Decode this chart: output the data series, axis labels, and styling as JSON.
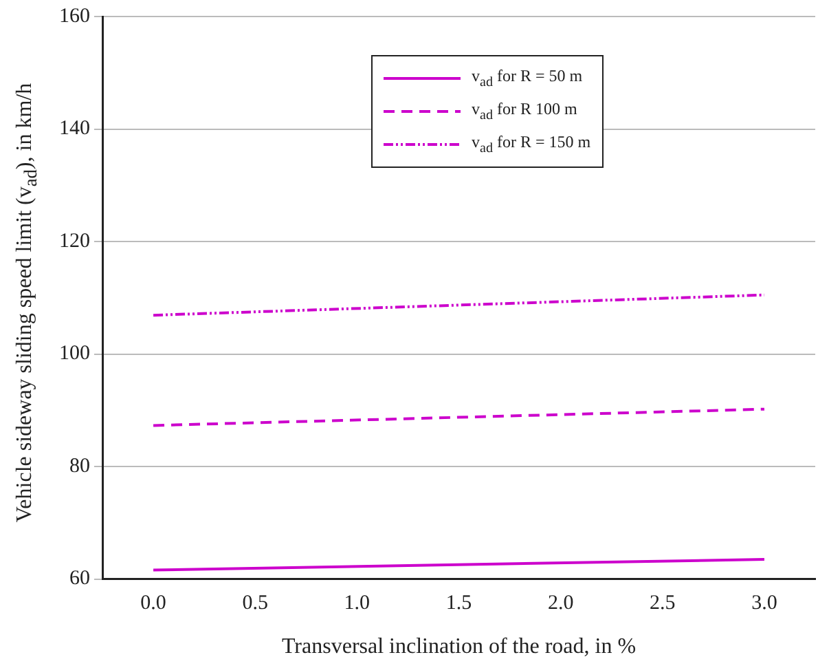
{
  "chart_data": {
    "type": "line",
    "xlabel": "Transversal inclination of the road, in %",
    "ylabel": "Vehicle sideway sliding speed limit (v$_{ad}$), in km/h",
    "xlim": [
      -0.25,
      3.25
    ],
    "xticks": [
      {
        "value": 0,
        "label": "0.0"
      },
      {
        "value": 0.5,
        "label": "0.5"
      },
      {
        "value": 1,
        "label": "1.0"
      },
      {
        "value": 1.5,
        "label": "1.5"
      },
      {
        "value": 2,
        "label": "2.0"
      },
      {
        "value": 2.5,
        "label": "2.5"
      },
      {
        "value": 3,
        "label": "3.0"
      }
    ],
    "ylim": [
      60,
      160
    ],
    "yticks": [
      60,
      80,
      100,
      120,
      140,
      160
    ],
    "grid": "y",
    "legend": "top",
    "x": [
      0,
      3
    ],
    "series": [
      {
        "name": "v$_{ad}$ for R = 50 m",
        "color": "#cc00cc",
        "line_style": "solid",
        "values": [
          61.6,
          63.5
        ]
      },
      {
        "name": "v$_{ad}$ for R   100 m",
        "color": "#cc00cc",
        "line_style": "dashed",
        "values": [
          87.3,
          90.2
        ]
      },
      {
        "name": "v$_{ad}$ for R = 150 m",
        "color": "#cc00cc",
        "line_style": "dotted",
        "values": [
          106.9,
          110.5
        ]
      }
    ]
  }
}
